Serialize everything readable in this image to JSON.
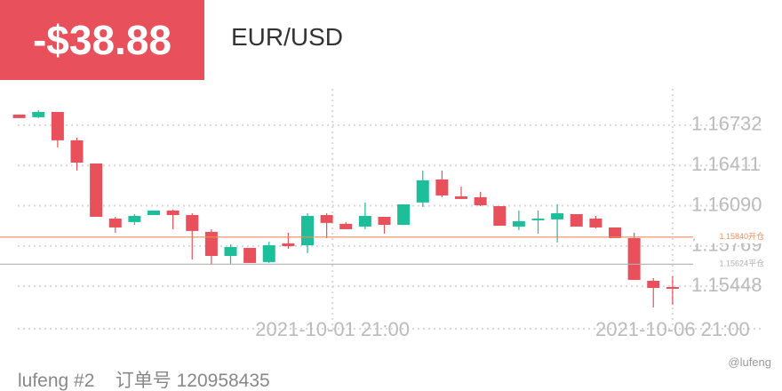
{
  "pnl": "-$38.88",
  "symbol": "EUR/USD",
  "footer": {
    "account": "lufeng #2",
    "order": "订单号 120958435",
    "watermark": "@lufeng"
  },
  "chart_data": {
    "type": "candlestick",
    "categories": [
      null,
      null,
      null,
      null,
      null,
      null,
      null,
      null,
      null,
      null,
      null,
      null,
      null,
      null,
      null,
      null,
      null,
      null,
      null,
      null,
      null,
      null,
      null,
      null,
      null,
      null,
      null,
      null,
      null,
      null,
      null,
      null,
      null,
      null,
      null
    ],
    "xlim": [
      -1,
      39
    ],
    "xticks": [
      {
        "value": 16.3,
        "label": "2021-10-01 21:00"
      },
      {
        "value": 34,
        "label": "2021-10-06 21:00"
      }
    ],
    "ylim": [
      1.15109,
      1.17022
    ],
    "yticks": [
      1.16732,
      1.16411,
      {
        "value": 1.1609,
        "label": "1.16090"
      },
      1.15769,
      1.15448
    ],
    "grid": true,
    "up_color": "#1dbf9b",
    "down_color": "#e8505b",
    "open": [
      1.16817,
      1.16796,
      1.16838,
      1.16612,
      1.16427,
      1.15988,
      1.1596,
      1.16016,
      1.16052,
      1.16016,
      1.15882,
      1.1569,
      1.15754,
      1.15641,
      1.1579,
      1.15775,
      1.16016,
      1.15946,
      1.15924,
      1.16002,
      1.15938,
      1.16116,
      1.163,
      1.16165,
      1.16158,
      1.16087,
      1.15924,
      1.15974,
      1.15981,
      1.16023,
      1.15988,
      1.15917,
      1.15832,
      1.15492,
      1.15442
    ],
    "high": [
      1.16817,
      1.16852,
      1.16838,
      1.16633,
      1.16427,
      1.16002,
      1.16023,
      1.16052,
      1.16059,
      1.1603,
      1.15903,
      1.15783,
      1.15754,
      1.15804,
      1.15875,
      1.1603,
      1.1603,
      1.1596,
      1.16116,
      1.16002,
      1.16101,
      1.16371,
      1.16371,
      1.16243,
      1.16201,
      1.16087,
      1.16052,
      1.16052,
      1.16101,
      1.16023,
      1.16009,
      1.15917,
      1.15875,
      1.15513,
      1.15527
    ],
    "low": [
      1.16789,
      1.16789,
      1.16555,
      1.16371,
      1.16002,
      1.15875,
      1.15938,
      1.16016,
      1.15903,
      1.15662,
      1.1562,
      1.15627,
      1.15634,
      1.15634,
      1.15747,
      1.15712,
      1.15832,
      1.15903,
      1.15903,
      1.15868,
      1.15938,
      1.1608,
      1.16158,
      1.16144,
      1.16087,
      1.15931,
      1.15896,
      1.15868,
      1.15797,
      1.15924,
      1.1591,
      1.15832,
      1.15499,
      1.15279,
      1.15301
    ],
    "close": [
      1.16789,
      1.16838,
      1.16612,
      1.16434,
      1.16002,
      1.15917,
      1.16009,
      1.16052,
      1.16016,
      1.15889,
      1.1569,
      1.15761,
      1.15634,
      1.15775,
      1.15768,
      1.16009,
      1.15953,
      1.15903,
      1.16009,
      1.15938,
      1.16101,
      1.16293,
      1.16172,
      1.16144,
      1.16094,
      1.15931,
      1.15967,
      1.15988,
      1.1603,
      1.15924,
      1.15917,
      1.15832,
      1.15499,
      1.15435,
      1.15428
    ],
    "lines": [
      {
        "value": 1.1584,
        "label": "1.15840开仓",
        "color": "#f08c5a"
      },
      {
        "value": 1.15624,
        "label": "1.15624平仓",
        "color": "#b0b0b0"
      }
    ]
  }
}
